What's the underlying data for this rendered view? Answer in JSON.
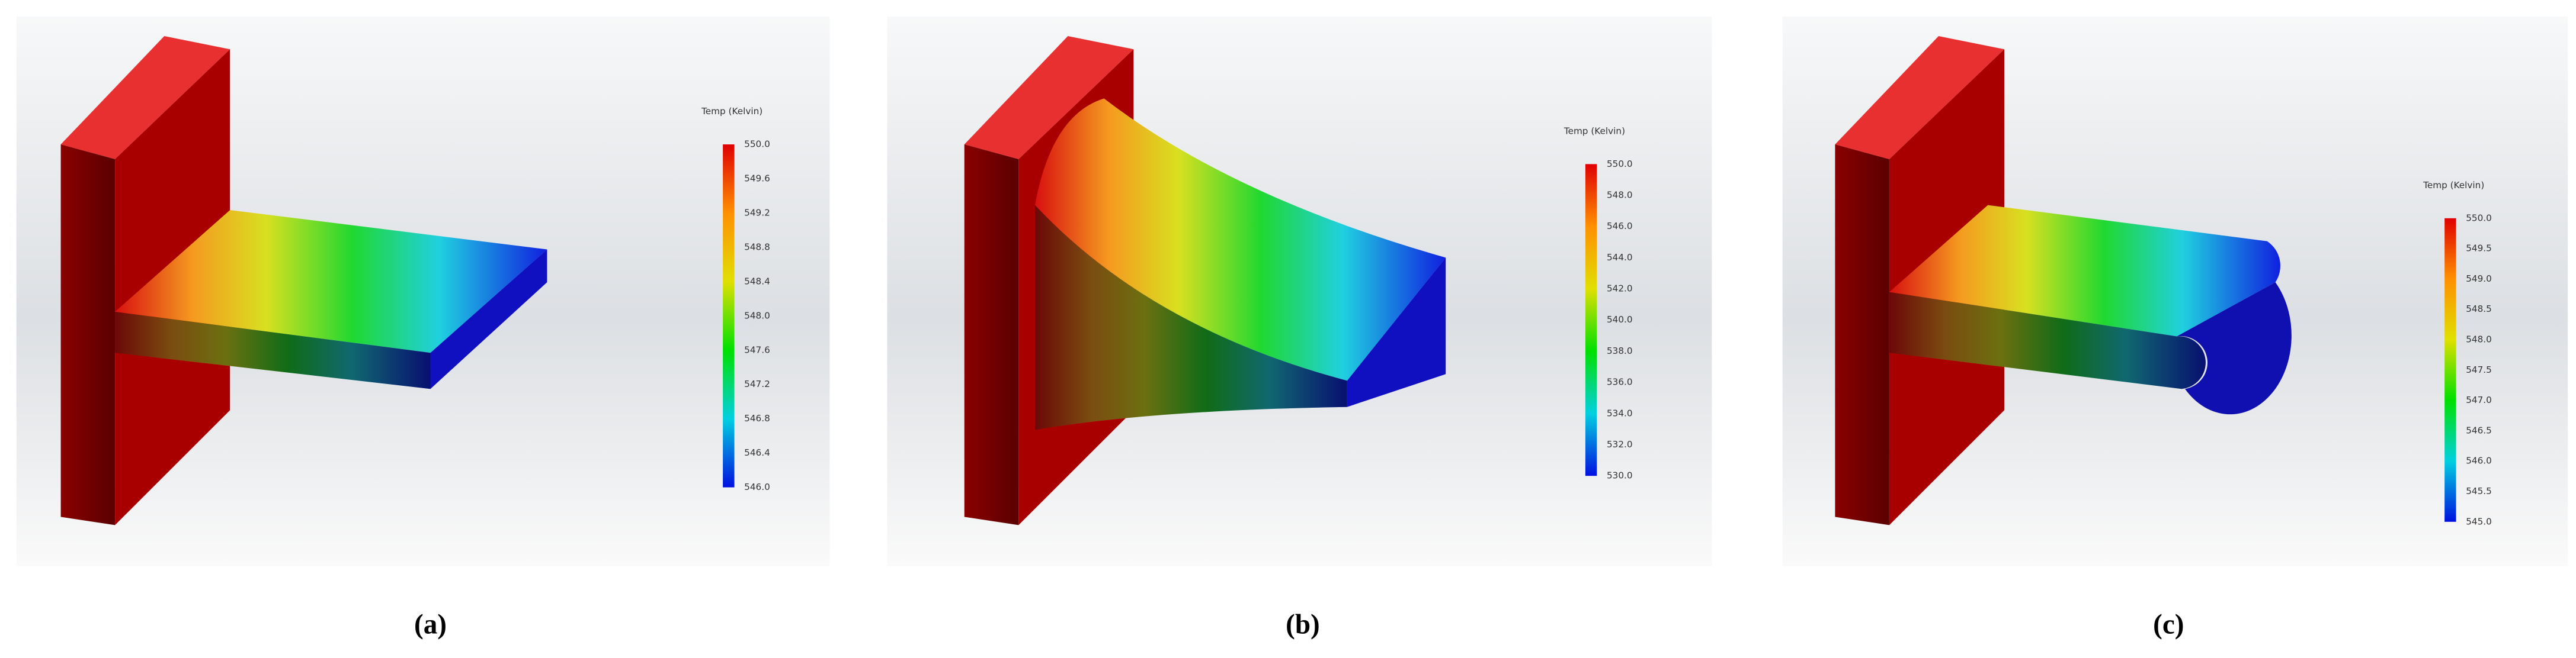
{
  "panels": [
    {
      "legend": {
        "title": "Temp (Kelvin)",
        "ticks": [
          "550.0",
          "549.6",
          "549.2",
          "548.8",
          "548.4",
          "548.0",
          "547.6",
          "547.2",
          "546.8",
          "546.4",
          "546.0"
        ]
      },
      "caption": "(a)"
    },
    {
      "legend": {
        "title": "Temp (Kelvin)",
        "ticks": [
          "550.0",
          "548.0",
          "546.0",
          "544.0",
          "542.0",
          "540.0",
          "538.0",
          "536.0",
          "534.0",
          "532.0",
          "530.0"
        ]
      },
      "caption": "(b)"
    },
    {
      "legend": {
        "title": "Temp (Kelvin)",
        "ticks": [
          "550.0",
          "549.5",
          "549.0",
          "548.5",
          "548.0",
          "547.5",
          "547.0",
          "546.5",
          "546.0",
          "545.5",
          "545.0"
        ]
      },
      "caption": "(c)"
    }
  ]
}
